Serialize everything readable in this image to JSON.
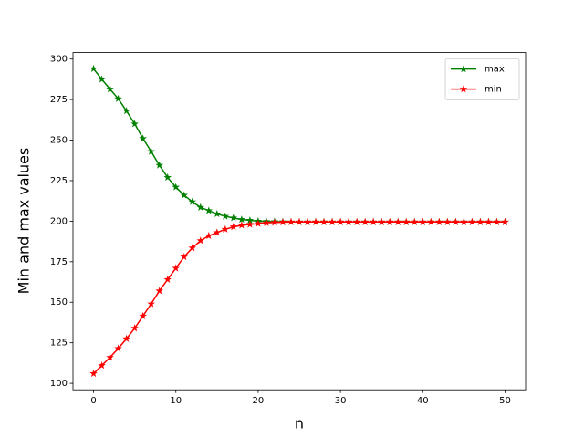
{
  "chart_data": {
    "type": "line",
    "xlabel": "n",
    "ylabel": "Min and max values",
    "x": [
      0,
      1,
      2,
      3,
      4,
      5,
      6,
      7,
      8,
      9,
      10,
      11,
      12,
      13,
      14,
      15,
      16,
      17,
      18,
      19,
      20,
      21,
      22,
      23,
      24,
      25,
      26,
      27,
      28,
      29,
      30,
      31,
      32,
      33,
      34,
      35,
      36,
      37,
      38,
      39,
      40,
      41,
      42,
      43,
      44,
      45,
      46,
      47,
      48,
      49,
      50
    ],
    "series": [
      {
        "name": "max",
        "color": "green",
        "values": [
          294,
          287.5,
          281.5,
          275.5,
          268,
          260,
          251,
          243,
          234.5,
          227,
          221,
          216,
          212,
          208.5,
          206.5,
          204.5,
          203,
          202,
          201,
          200.5,
          200,
          199.8,
          199.7,
          199.6,
          199.5,
          199.5,
          199.5,
          199.5,
          199.5,
          199.5,
          199.5,
          199.5,
          199.5,
          199.5,
          199.5,
          199.5,
          199.5,
          199.5,
          199.5,
          199.5,
          199.5,
          199.5,
          199.5,
          199.5,
          199.5,
          199.5,
          199.5,
          199.5,
          199.5,
          199.5,
          199.5
        ]
      },
      {
        "name": "min",
        "color": "red",
        "values": [
          106,
          111,
          116,
          121.5,
          127.5,
          134,
          141.5,
          149,
          157,
          164,
          171,
          178,
          183.5,
          188,
          191,
          193,
          195,
          196.5,
          197.5,
          198,
          198.5,
          199,
          199.2,
          199.4,
          199.5,
          199.5,
          199.5,
          199.5,
          199.5,
          199.5,
          199.5,
          199.5,
          199.5,
          199.5,
          199.5,
          199.5,
          199.5,
          199.5,
          199.5,
          199.5,
          199.5,
          199.5,
          199.5,
          199.5,
          199.5,
          199.5,
          199.5,
          199.5,
          199.5,
          199.5,
          199.5
        ]
      }
    ],
    "xlim": [
      -2.5,
      52.5
    ],
    "xticks": [
      0,
      10,
      20,
      30,
      40,
      50
    ],
    "ylim": [
      96,
      304
    ],
    "yticks": [
      100,
      125,
      150,
      175,
      200,
      225,
      250,
      275,
      300
    ],
    "grid": false,
    "legend": "upper right",
    "marker": "star"
  }
}
